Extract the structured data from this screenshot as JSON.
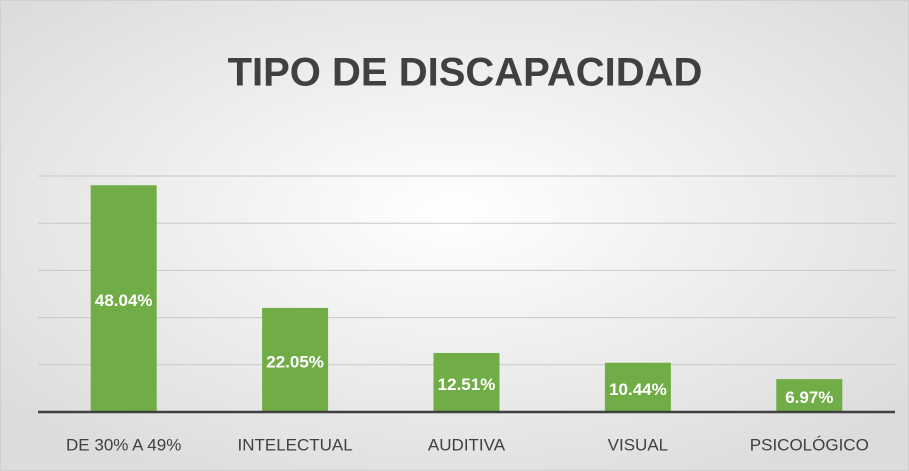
{
  "chart_data": {
    "type": "bar",
    "title": "TIPO DE DISCAPACIDAD",
    "categories": [
      "DE 30% A 49%",
      "INTELECTUAL",
      "AUDITIVA",
      "VISUAL",
      "PSICOLÓGICO"
    ],
    "values": [
      48.04,
      22.05,
      12.51,
      10.44,
      6.97
    ],
    "value_labels": [
      "48.04%",
      "22.05%",
      "12.51%",
      "10.44%",
      "6.97%"
    ],
    "color": "#71ad47",
    "ylim": [
      0,
      50
    ],
    "yticks": [
      0,
      10,
      20,
      30,
      40,
      50
    ],
    "grid": true
  }
}
